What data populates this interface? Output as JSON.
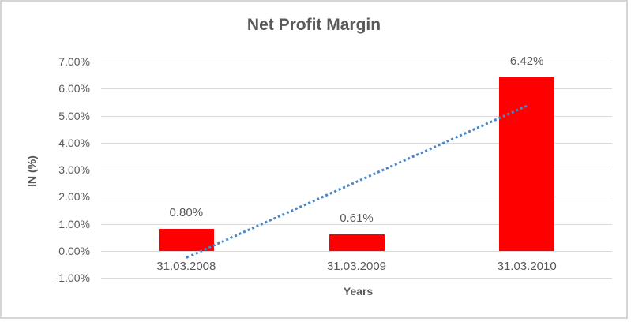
{
  "chart": {
    "frame_border_color": "#d6d4d4",
    "background_color": "#ffffff"
  },
  "chart_data": {
    "type": "bar",
    "title": "Net Profit Margin",
    "xlabel": "Years",
    "ylabel": "IN (%)",
    "categories": [
      "31.03.2008",
      "31.03.2009",
      "31.03.2010"
    ],
    "values": [
      0.8,
      0.61,
      6.42
    ],
    "data_labels": [
      "0.80%",
      "0.61%",
      "6.42%"
    ],
    "y_ticks": [
      "7.00%",
      "6.00%",
      "5.00%",
      "4.00%",
      "3.00%",
      "2.00%",
      "1.00%",
      "0.00%",
      "-1.00%"
    ],
    "y_tick_values": [
      7,
      6,
      5,
      4,
      3,
      2,
      1,
      0,
      -1
    ],
    "ylim": [
      -1,
      7
    ],
    "grid": true,
    "legend": false,
    "bar_color": "#ff0000",
    "text_color": "#595959",
    "gridline_color": "#d9d9d9",
    "trendline": {
      "type": "linear",
      "style": "dotted",
      "color": "#4a86c8",
      "start_value": -0.2,
      "end_value": 5.42
    }
  }
}
